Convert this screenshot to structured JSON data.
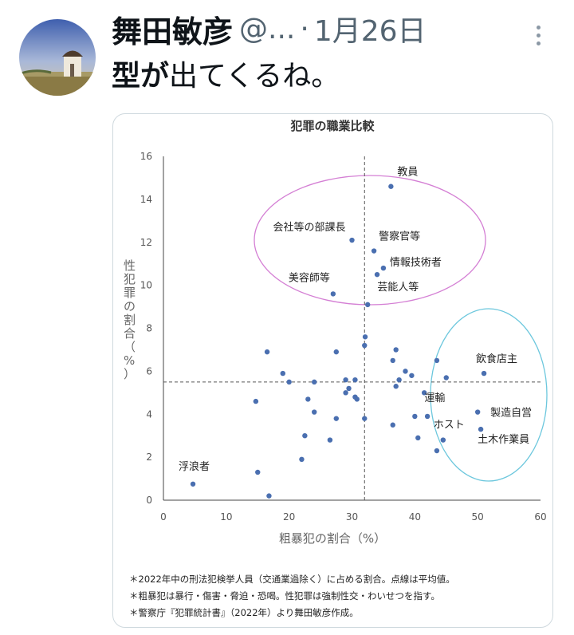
{
  "tweet": {
    "display_name": "舞田敏彦",
    "handle": "@...",
    "separator": "·",
    "date": "1月26日",
    "text_bold": "型が",
    "text_rest": "出てくるね。"
  },
  "icons": {
    "avatar": "profile-photo",
    "more": "more-options-icon"
  },
  "colors": {
    "point": "#4a6fb0",
    "ellipse_top": "#d47fd4",
    "ellipse_right": "#6cc7dd",
    "guide": "#555555"
  },
  "chart_data": {
    "type": "scatter",
    "title": "犯罪の職業比較",
    "xlabel": "粗暴犯の割合（%）",
    "ylabel": "性犯罪の割合（%）",
    "xlim": [
      0,
      60
    ],
    "ylim": [
      0,
      16
    ],
    "xticks": [
      0,
      10,
      20,
      30,
      40,
      50,
      60
    ],
    "yticks": [
      0,
      2,
      4,
      6,
      8,
      10,
      12,
      14,
      16
    ],
    "mean_x": 32,
    "mean_y": 5.5,
    "grid": false,
    "points": [
      {
        "x": 36.2,
        "y": 14.6,
        "label": "教員"
      },
      {
        "x": 30.0,
        "y": 12.1,
        "label": "会社等の部課長"
      },
      {
        "x": 33.5,
        "y": 11.6,
        "label": "警察官等"
      },
      {
        "x": 35.0,
        "y": 10.8,
        "label": "情報技術者"
      },
      {
        "x": 34.0,
        "y": 10.5,
        "label": ""
      },
      {
        "x": 27.0,
        "y": 9.6,
        "label": "美容師等"
      },
      {
        "x": 32.5,
        "y": 9.1,
        "label": "芸能人等"
      },
      {
        "x": 32.1,
        "y": 7.6,
        "label": ""
      },
      {
        "x": 32.0,
        "y": 7.2,
        "label": ""
      },
      {
        "x": 16.5,
        "y": 6.9,
        "label": ""
      },
      {
        "x": 27.5,
        "y": 6.9,
        "label": ""
      },
      {
        "x": 37.0,
        "y": 7.0,
        "label": ""
      },
      {
        "x": 36.5,
        "y": 6.5,
        "label": ""
      },
      {
        "x": 43.5,
        "y": 6.5,
        "label": ""
      },
      {
        "x": 19.0,
        "y": 5.9,
        "label": ""
      },
      {
        "x": 20.0,
        "y": 5.5,
        "label": ""
      },
      {
        "x": 24.0,
        "y": 5.5,
        "label": ""
      },
      {
        "x": 29.0,
        "y": 5.6,
        "label": ""
      },
      {
        "x": 30.5,
        "y": 5.6,
        "label": ""
      },
      {
        "x": 37.5,
        "y": 5.6,
        "label": ""
      },
      {
        "x": 38.5,
        "y": 6.0,
        "label": ""
      },
      {
        "x": 39.5,
        "y": 5.8,
        "label": ""
      },
      {
        "x": 45.0,
        "y": 5.7,
        "label": ""
      },
      {
        "x": 51.0,
        "y": 5.9,
        "label": "飲食店主"
      },
      {
        "x": 37.0,
        "y": 5.3,
        "label": ""
      },
      {
        "x": 29.0,
        "y": 5.0,
        "label": ""
      },
      {
        "x": 29.5,
        "y": 5.2,
        "label": ""
      },
      {
        "x": 30.5,
        "y": 4.8,
        "label": ""
      },
      {
        "x": 30.8,
        "y": 4.7,
        "label": ""
      },
      {
        "x": 41.5,
        "y": 5.0,
        "label": ""
      },
      {
        "x": 14.7,
        "y": 4.6,
        "label": ""
      },
      {
        "x": 23.0,
        "y": 4.7,
        "label": ""
      },
      {
        "x": 24.0,
        "y": 4.1,
        "label": ""
      },
      {
        "x": 27.5,
        "y": 3.8,
        "label": ""
      },
      {
        "x": 32.0,
        "y": 3.8,
        "label": ""
      },
      {
        "x": 40.0,
        "y": 3.9,
        "label": "運輸"
      },
      {
        "x": 42.0,
        "y": 3.9,
        "label": ""
      },
      {
        "x": 50.0,
        "y": 4.1,
        "label": "製造自営"
      },
      {
        "x": 36.5,
        "y": 3.5,
        "label": ""
      },
      {
        "x": 22.5,
        "y": 3.0,
        "label": ""
      },
      {
        "x": 26.5,
        "y": 2.8,
        "label": ""
      },
      {
        "x": 40.5,
        "y": 2.9,
        "label": ""
      },
      {
        "x": 44.5,
        "y": 2.8,
        "label": "ホスト"
      },
      {
        "x": 50.5,
        "y": 3.3,
        "label": "土木作業員"
      },
      {
        "x": 22.0,
        "y": 1.9,
        "label": ""
      },
      {
        "x": 43.5,
        "y": 2.3,
        "label": ""
      },
      {
        "x": 15.0,
        "y": 1.3,
        "label": ""
      },
      {
        "x": 4.7,
        "y": 0.75,
        "label": "浮浪者"
      },
      {
        "x": 16.8,
        "y": 0.2,
        "label": ""
      }
    ],
    "notes": [
      "＊2022年中の刑法犯検挙人員（交通業過除く）に占める割合。点線は平均値。",
      "＊粗暴犯は暴行・傷害・脅迫・恐喝。性犯罪は強制性交・わいせつを指す。",
      "＊警察庁『犯罪統計書』（2022年）より舞田敏彦作成。"
    ]
  }
}
